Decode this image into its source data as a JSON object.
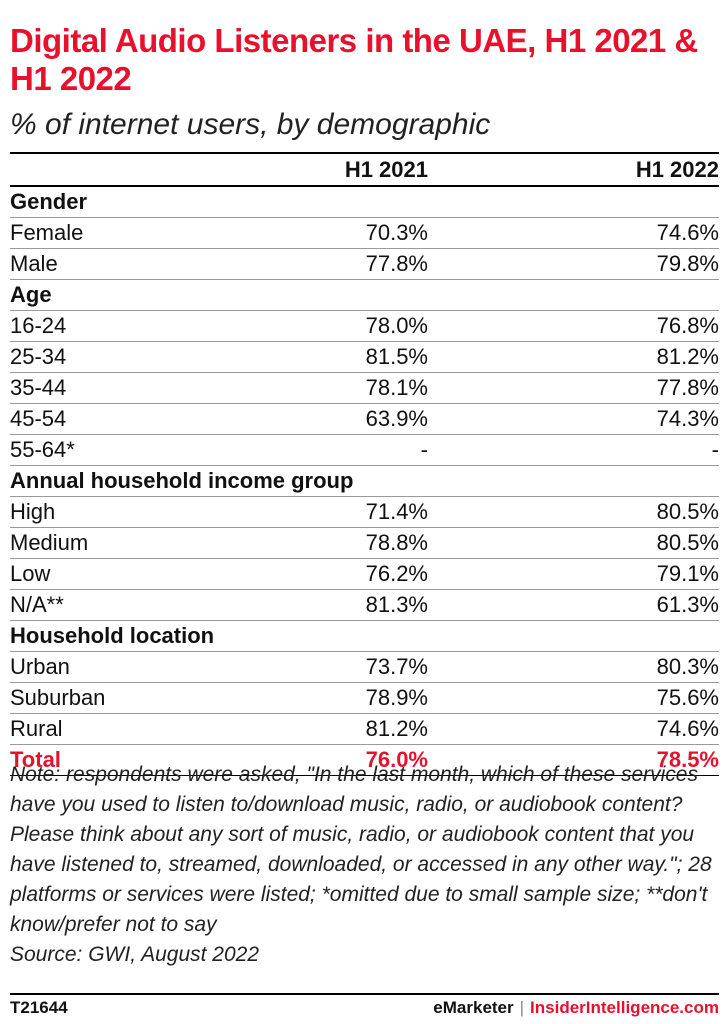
{
  "title": "Digital Audio Listeners in the UAE, H1 2021 & H1 2022",
  "subtitle": "% of internet users, by demographic",
  "chart_data": {
    "type": "table",
    "title": "Digital Audio Listeners in the UAE, H1 2021 & H1 2022",
    "subtitle": "% of internet users, by demographic",
    "columns": [
      "H1 2021",
      "H1 2022"
    ],
    "rows": [
      {
        "kind": "section",
        "label": "Gender"
      },
      {
        "kind": "row",
        "label": "Female",
        "values": [
          "70.3%",
          "74.6%"
        ]
      },
      {
        "kind": "row",
        "label": "Male",
        "values": [
          "77.8%",
          "79.8%"
        ]
      },
      {
        "kind": "section",
        "label": "Age"
      },
      {
        "kind": "row",
        "label": "16-24",
        "values": [
          "78.0%",
          "76.8%"
        ]
      },
      {
        "kind": "row",
        "label": "25-34",
        "values": [
          "81.5%",
          "81.2%"
        ]
      },
      {
        "kind": "row",
        "label": "35-44",
        "values": [
          "78.1%",
          "77.8%"
        ]
      },
      {
        "kind": "row",
        "label": "45-54",
        "values": [
          "63.9%",
          "74.3%"
        ]
      },
      {
        "kind": "row",
        "label": "55-64*",
        "values": [
          "-",
          "-"
        ]
      },
      {
        "kind": "section",
        "label": "Annual household income group"
      },
      {
        "kind": "row",
        "label": "High",
        "values": [
          "71.4%",
          "80.5%"
        ]
      },
      {
        "kind": "row",
        "label": "Medium",
        "values": [
          "78.8%",
          "80.5%"
        ]
      },
      {
        "kind": "row",
        "label": "Low",
        "values": [
          "76.2%",
          "79.1%"
        ]
      },
      {
        "kind": "row",
        "label": "N/A**",
        "values": [
          "81.3%",
          "61.3%"
        ]
      },
      {
        "kind": "section",
        "label": "Household location"
      },
      {
        "kind": "row",
        "label": "Urban",
        "values": [
          "73.7%",
          "80.3%"
        ]
      },
      {
        "kind": "row",
        "label": "Suburban",
        "values": [
          "78.9%",
          "75.6%"
        ]
      },
      {
        "kind": "row",
        "label": "Rural",
        "values": [
          "81.2%",
          "74.6%"
        ]
      },
      {
        "kind": "total",
        "label": "Total",
        "values": [
          "76.0%",
          "78.5%"
        ]
      }
    ]
  },
  "note": "Note: respondents were asked, \"In the last month, which of these services have you used to listen to/download music, radio, or audiobook content? Please think about any sort of music, radio, or audiobook content that you have listened to, streamed, downloaded, or accessed in any other way.\"; 28 platforms or services were listed; *omitted due to small sample size; **don't know/prefer not to say",
  "source": "Source: GWI, August 2022",
  "footer": {
    "id": "T21644",
    "brand_emarketer": "eMarketer",
    "separator": "|",
    "brand_insider": "InsiderIntelligence.com"
  },
  "colors": {
    "accent": "#e8112d",
    "text": "#111111",
    "rule": "#9a9a9a"
  }
}
